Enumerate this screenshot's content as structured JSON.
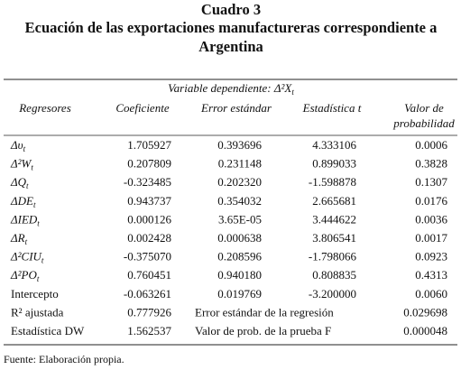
{
  "title": [
    "Cuadro 3",
    "Ecuación de las exportaciones manufactureras correspondiente a",
    "Argentina"
  ],
  "table": {
    "dependent": {
      "text": "Variable dependiente: Δ²X",
      "sub": "t"
    },
    "columns": [
      "Regresores",
      "Coeficiente",
      "Error estándar",
      "Estadística t",
      [
        "Valor de",
        "probabilidad"
      ]
    ],
    "rows": [
      {
        "label": "Δυ",
        "sub": "t",
        "cells": [
          "1.705927",
          "0.393696",
          "4.333106",
          "0.0006"
        ]
      },
      {
        "label": "Δ²W",
        "sub": "t",
        "cells": [
          "0.207809",
          "0.231148",
          "0.899033",
          "0.3828"
        ]
      },
      {
        "label": "ΔQ",
        "sub": "t",
        "cells": [
          "-0.323485",
          "0.202320",
          "-1.598878",
          "0.1307"
        ]
      },
      {
        "label": "ΔDE",
        "sub": "t",
        "cells": [
          "0.943737",
          "0.354032",
          "2.665681",
          "0.0176"
        ]
      },
      {
        "label": "ΔIED",
        "sub": "t",
        "cells": [
          "0.000126",
          "3.65E-05",
          "3.444622",
          "0.0036"
        ]
      },
      {
        "label": "ΔR",
        "sub": "t",
        "cells": [
          "0.002428",
          "0.000638",
          "3.806541",
          "0.0017"
        ]
      },
      {
        "label": "Δ²CIU",
        "sub": "t",
        "cells": [
          "-0.375070",
          "0.208596",
          "-1.798066",
          "0.0923"
        ]
      },
      {
        "label": "Δ²PO",
        "sub": "t",
        "cells": [
          "0.760451",
          "0.940180",
          "0.808835",
          "0.4313"
        ]
      },
      {
        "label": "Intercepto",
        "cells": [
          "-0.063261",
          "0.019769",
          "-3.200000",
          "0.0060"
        ]
      }
    ],
    "summary": [
      {
        "label": "R² ajustada",
        "value": "0.777926",
        "stat_label": "Error estándar de la regresión",
        "stat_value": "0.029698"
      },
      {
        "label": "Estadística DW",
        "value": "1.562537",
        "stat_label": "Valor de prob. de la prueba F",
        "stat_value": "0.000048"
      }
    ]
  },
  "source": "Fuente: Elaboración propia."
}
